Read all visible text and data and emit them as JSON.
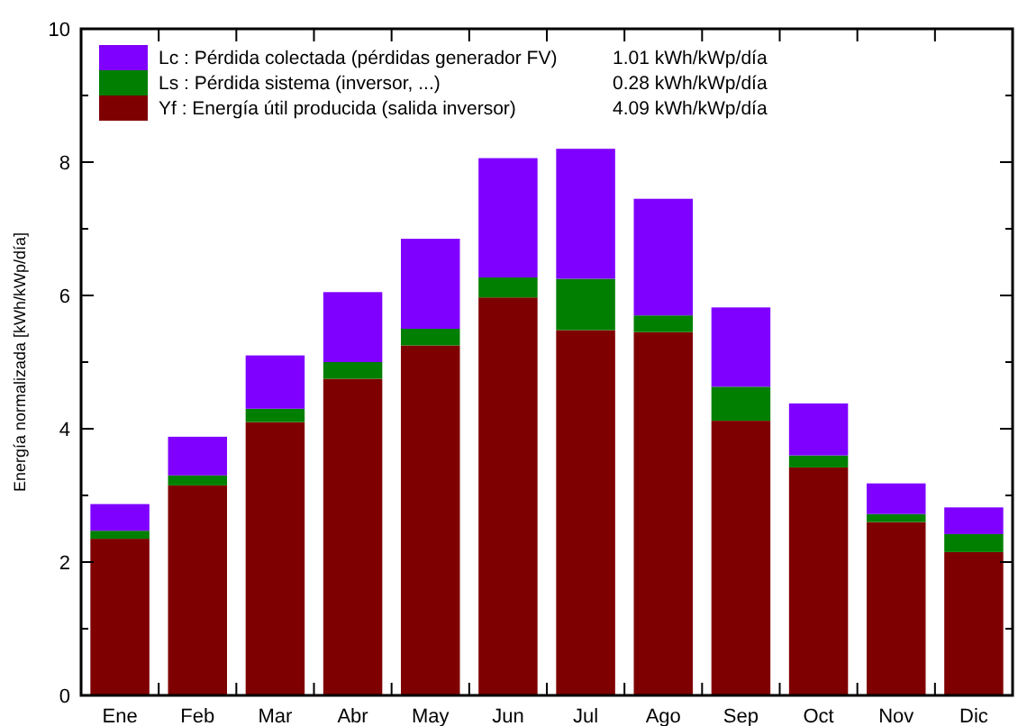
{
  "chart_data": {
    "type": "bar",
    "stacked": true,
    "ylabel": "Energía normalizada [kWh/kWp/día]",
    "categories": [
      "Ene",
      "Feb",
      "Mar",
      "Abr",
      "May",
      "Jun",
      "Jul",
      "Ago",
      "Sep",
      "Oct",
      "Nov",
      "Dic"
    ],
    "series": [
      {
        "name": "Yf : Energía útil producida  (salida inversor)",
        "color": "#7f0000",
        "values": [
          2.35,
          3.15,
          4.1,
          4.75,
          5.25,
          5.97,
          5.48,
          5.45,
          4.12,
          3.42,
          2.6,
          2.15
        ]
      },
      {
        "name": "Ls : Pérdida sistema  (inversor, ...)",
        "color": "#007f00",
        "values": [
          0.12,
          0.15,
          0.2,
          0.25,
          0.25,
          0.3,
          0.77,
          0.25,
          0.51,
          0.18,
          0.12,
          0.27
        ]
      },
      {
        "name": "Lc : Pérdida colectada (pérdidas generador FV)",
        "color": "#7f00ff",
        "values": [
          0.4,
          0.58,
          0.8,
          1.05,
          1.35,
          1.79,
          1.95,
          1.75,
          1.19,
          0.78,
          0.46,
          0.4
        ]
      }
    ],
    "annotations": [
      "4.09 kWh/kWp/día",
      "0.28 kWh/kWp/día",
      "1.01 kWh/kWp/día"
    ],
    "ylim": [
      0,
      10
    ],
    "yticks": [
      0,
      {
        "value": 1,
        "label": null
      },
      2,
      {
        "value": 3,
        "label": null
      },
      4,
      {
        "value": 5,
        "label": null
      },
      6,
      {
        "value": 7,
        "label": null
      },
      8,
      {
        "value": 9,
        "label": null
      },
      10
    ],
    "legend": "top left",
    "grid": false
  }
}
